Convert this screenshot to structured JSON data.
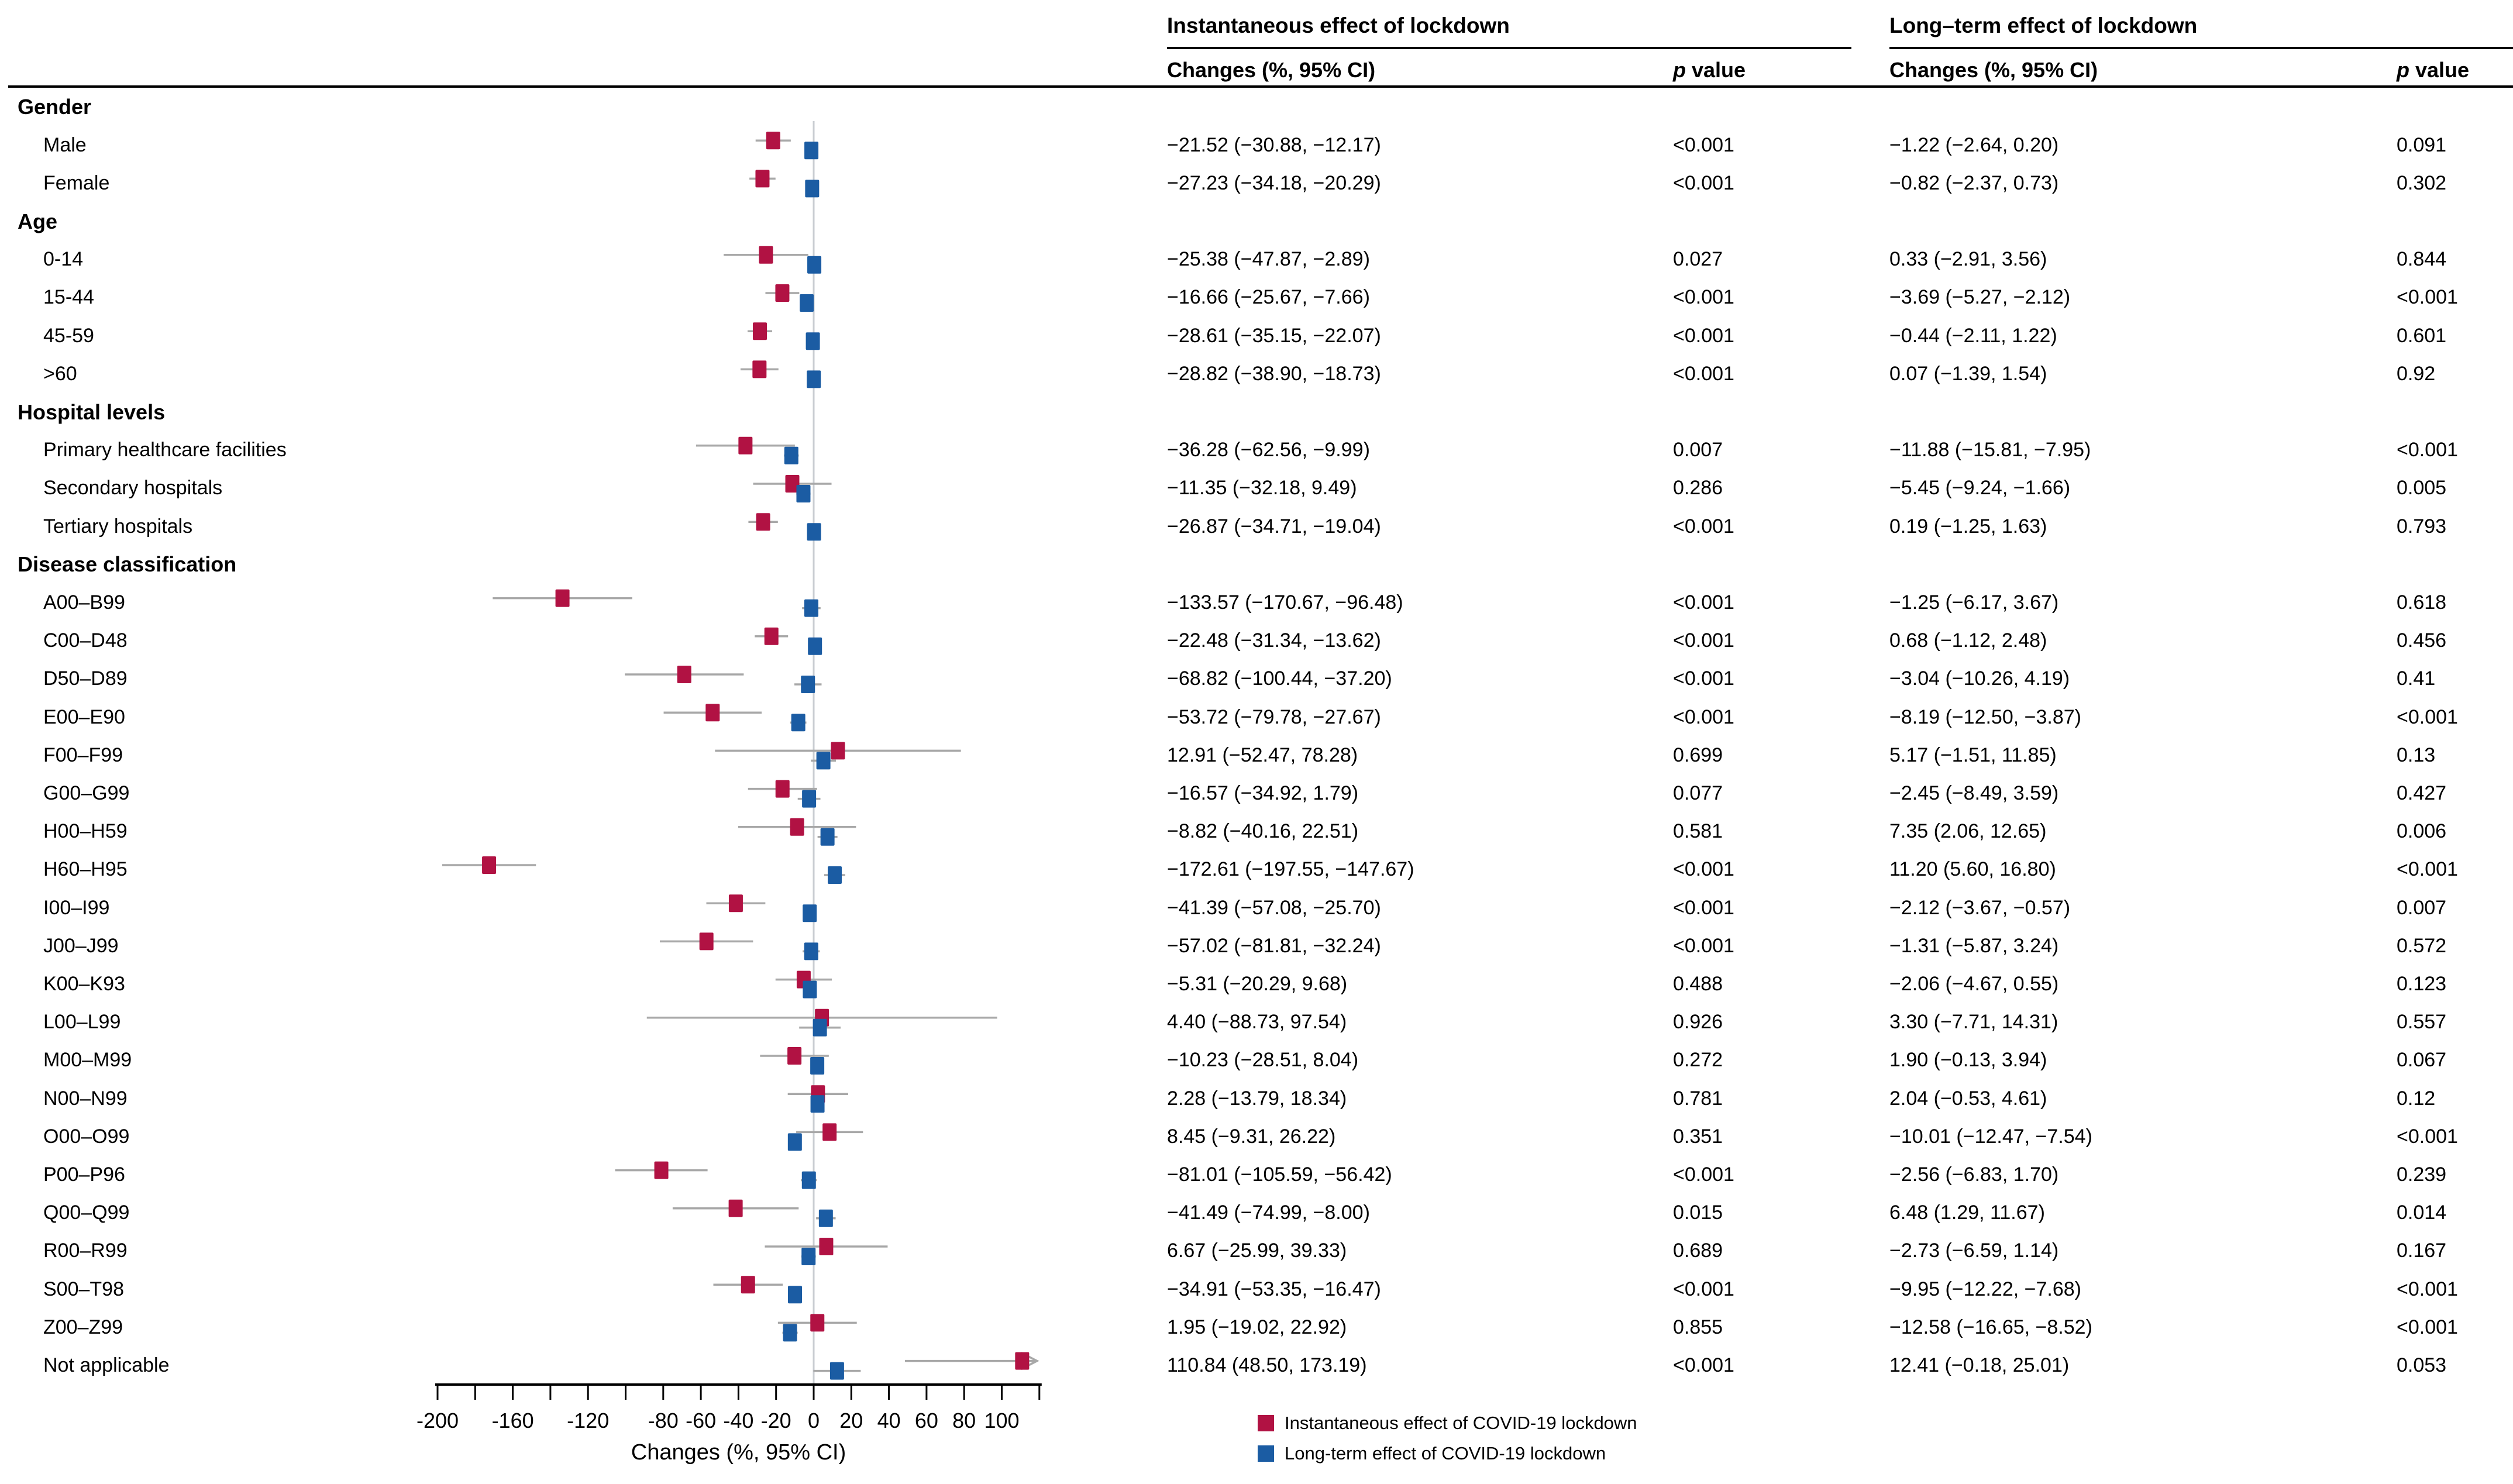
{
  "page": {
    "column_groups": [
      {
        "title": "Instantaneous effect of lockdown"
      },
      {
        "title": "Long–term effect of lockdown"
      }
    ],
    "column_headers": {
      "changes": "Changes (%, 95% CI)",
      "p_italic": "p",
      "p_rest": " value"
    }
  },
  "chart_data": {
    "type": "forest",
    "xlabel": "Changes (%, 95% CI)",
    "xlim": [
      -200,
      120
    ],
    "x_tick_step": 20,
    "x_tick_values_labeled": [
      -200,
      -160,
      -120,
      -80,
      -60,
      -40,
      -20,
      0,
      20,
      40,
      60,
      80,
      100
    ],
    "x_tick_labels": [
      "-200",
      "-160",
      "-120",
      "-80",
      "-60",
      "-40",
      "-20",
      "0",
      "20",
      "40",
      "60",
      "80",
      "100"
    ],
    "grid": false,
    "series": [
      {
        "name": "Instantaneous effect of COVID-19 lockdown",
        "color": "#b11243"
      },
      {
        "name": "Long-term effect of COVID-19 lockdown",
        "color": "#1b5ca3"
      }
    ],
    "sections": [
      {
        "label": "Gender",
        "rows": [
          {
            "label": "Male",
            "inst_text": "−21.52 (−30.88, −12.17)",
            "inst_p": "<0.001",
            "long_text": "−1.22 (−2.64, 0.20)",
            "long_p": "0.091"
          },
          {
            "label": "Female",
            "inst_text": "−27.23 (−34.18, −20.29)",
            "inst_p": "<0.001",
            "long_text": "−0.82 (−2.37, 0.73)",
            "long_p": "0.302"
          }
        ]
      },
      {
        "label": "Age",
        "rows": [
          {
            "label": "0-14",
            "inst_text": "−25.38 (−47.87, −2.89)",
            "inst_p": "0.027",
            "long_text": "0.33 (−2.91, 3.56)",
            "long_p": "0.844"
          },
          {
            "label": "15-44",
            "inst_text": "−16.66 (−25.67, −7.66)",
            "inst_p": "<0.001",
            "long_text": "−3.69 (−5.27, −2.12)",
            "long_p": "<0.001"
          },
          {
            "label": "45-59",
            "inst_text": "−28.61 (−35.15, −22.07)",
            "inst_p": "<0.001",
            "long_text": "−0.44 (−2.11, 1.22)",
            "long_p": "0.601"
          },
          {
            "label": ">60",
            "inst_text": "−28.82 (−38.90, −18.73)",
            "inst_p": "<0.001",
            "long_text": "0.07 (−1.39, 1.54)",
            "long_p": "0.92"
          }
        ]
      },
      {
        "label": "Hospital levels",
        "rows": [
          {
            "label": "Primary healthcare facilities",
            "inst_text": "−36.28 (−62.56, −9.99)",
            "inst_p": "0.007",
            "long_text": "−11.88 (−15.81, −7.95)",
            "long_p": "<0.001"
          },
          {
            "label": "Secondary hospitals",
            "inst_text": "−11.35 (−32.18, 9.49)",
            "inst_p": "0.286",
            "long_text": "−5.45 (−9.24, −1.66)",
            "long_p": "0.005"
          },
          {
            "label": "Tertiary hospitals",
            "inst_text": "−26.87 (−34.71, −19.04)",
            "inst_p": "<0.001",
            "long_text": "0.19 (−1.25, 1.63)",
            "long_p": "0.793"
          }
        ]
      },
      {
        "label": "Disease classification",
        "rows": [
          {
            "label": "A00–B99",
            "inst_text": "−133.57 (−170.67, −96.48)",
            "inst_p": "<0.001",
            "long_text": "−1.25 (−6.17, 3.67)",
            "long_p": "0.618"
          },
          {
            "label": "C00–D48",
            "inst_text": "−22.48 (−31.34, −13.62)",
            "inst_p": "<0.001",
            "long_text": "0.68 (−1.12, 2.48)",
            "long_p": "0.456"
          },
          {
            "label": "D50–D89",
            "inst_text": "−68.82 (−100.44, −37.20)",
            "inst_p": "<0.001",
            "long_text": "−3.04 (−10.26, 4.19)",
            "long_p": "0.41"
          },
          {
            "label": "E00–E90",
            "inst_text": "−53.72 (−79.78, −27.67)",
            "inst_p": "<0.001",
            "long_text": "−8.19 (−12.50, −3.87)",
            "long_p": "<0.001"
          },
          {
            "label": "F00–F99",
            "inst_text": "12.91 (−52.47, 78.28)",
            "inst_p": "0.699",
            "long_text": "5.17 (−1.51, 11.85)",
            "long_p": "0.13"
          },
          {
            "label": "G00–G99",
            "inst_text": "−16.57 (−34.92, 1.79)",
            "inst_p": "0.077",
            "long_text": "−2.45 (−8.49, 3.59)",
            "long_p": "0.427"
          },
          {
            "label": "H00–H59",
            "inst_text": "−8.82 (−40.16, 22.51)",
            "inst_p": "0.581",
            "long_text": "7.35 (2.06, 12.65)",
            "long_p": "0.006"
          },
          {
            "label": "H60–H95",
            "inst_text": "−172.61 (−197.55, −147.67)",
            "inst_p": "<0.001",
            "long_text": "11.20 (5.60, 16.80)",
            "long_p": "<0.001"
          },
          {
            "label": "I00–I99",
            "inst_text": "−41.39 (−57.08, −25.70)",
            "inst_p": "<0.001",
            "long_text": "−2.12 (−3.67, −0.57)",
            "long_p": "0.007"
          },
          {
            "label": "J00–J99",
            "inst_text": "−57.02 (−81.81, −32.24)",
            "inst_p": "<0.001",
            "long_text": "−1.31 (−5.87, 3.24)",
            "long_p": "0.572"
          },
          {
            "label": "K00–K93",
            "inst_text": "−5.31 (−20.29, 9.68)",
            "inst_p": "0.488",
            "long_text": "−2.06 (−4.67, 0.55)",
            "long_p": "0.123"
          },
          {
            "label": "L00–L99",
            "inst_text": "4.40 (−88.73, 97.54)",
            "inst_p": "0.926",
            "long_text": "3.30 (−7.71, 14.31)",
            "long_p": "0.557"
          },
          {
            "label": "M00–M99",
            "inst_text": "−10.23 (−28.51, 8.04)",
            "inst_p": "0.272",
            "long_text": "1.90 (−0.13, 3.94)",
            "long_p": "0.067"
          },
          {
            "label": "N00–N99",
            "inst_text": "2.28 (−13.79, 18.34)",
            "inst_p": "0.781",
            "long_text": "2.04 (−0.53, 4.61)",
            "long_p": "0.12"
          },
          {
            "label": "O00–O99",
            "inst_text": "8.45 (−9.31, 26.22)",
            "inst_p": "0.351",
            "long_text": "−10.01 (−12.47, −7.54)",
            "long_p": "<0.001"
          },
          {
            "label": "P00–P96",
            "inst_text": "−81.01 (−105.59, −56.42)",
            "inst_p": "<0.001",
            "long_text": "−2.56 (−6.83, 1.70)",
            "long_p": "0.239"
          },
          {
            "label": "Q00–Q99",
            "inst_text": "−41.49 (−74.99, −8.00)",
            "inst_p": "0.015",
            "long_text": "6.48 (1.29, 11.67)",
            "long_p": "0.014"
          },
          {
            "label": "R00–R99",
            "inst_text": "6.67 (−25.99, 39.33)",
            "inst_p": "0.689",
            "long_text": "−2.73 (−6.59, 1.14)",
            "long_p": "0.167"
          },
          {
            "label": "S00–T98",
            "inst_text": "−34.91 (−53.35, −16.47)",
            "inst_p": "<0.001",
            "long_text": "−9.95 (−12.22, −7.68)",
            "long_p": "<0.001"
          },
          {
            "label": "Z00–Z99",
            "inst_text": "1.95 (−19.02, 22.92)",
            "inst_p": "0.855",
            "long_text": "−12.58 (−16.65, −8.52)",
            "long_p": "<0.001"
          },
          {
            "label": "Not applicable",
            "inst_text": "110.84 (48.50, 173.19)",
            "inst_p": "<0.001",
            "long_text": "12.41 (−0.18, 25.01)",
            "long_p": "0.053"
          }
        ]
      }
    ]
  },
  "legend": [
    {
      "label": "Instantaneous effect of COVID-19 lockdown",
      "color": "#b11243"
    },
    {
      "label": "Long-term effect of COVID-19 lockdown",
      "color": "#1b5ca3"
    }
  ],
  "colors": {
    "instantaneous": "#b11243",
    "long_term": "#1b5ca3",
    "ci_line": "#a8a8a8",
    "zero_line": "#c9cdd2",
    "axis": "#000000"
  }
}
